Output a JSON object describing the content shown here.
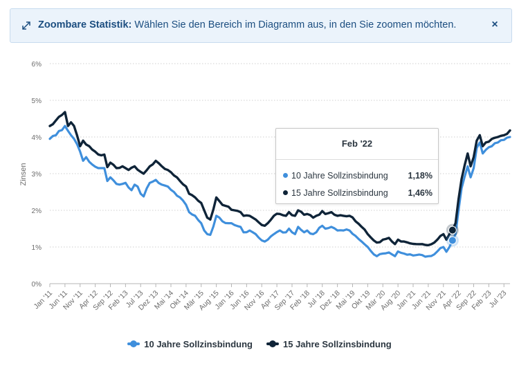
{
  "banner": {
    "title": "Zoombare Statistik:",
    "message": "Wählen Sie den Bereich im Diagramm aus, in den Sie zoomen möchten.",
    "close_label": "×"
  },
  "tooltip": {
    "title": "Feb '22",
    "rows": [
      {
        "label": "10 Jahre Sollzinsbindung",
        "value": "1,18%"
      },
      {
        "label": "15 Jahre Sollzinsbindung",
        "value": "1,46%"
      }
    ]
  },
  "colors": {
    "series1": "#3f8fdc",
    "series2": "#0f2438",
    "grid": "#cfcfcf",
    "banner_text": "#1c4e80"
  },
  "chart_data": {
    "type": "line",
    "ylabel": "Zinsen",
    "ylim": [
      0,
      6
    ],
    "y_ticks": [
      "0%",
      "1%",
      "2%",
      "3%",
      "4%",
      "5%",
      "6%"
    ],
    "x_ticks": [
      "Jan '11",
      "Jun '11",
      "Nov '11",
      "Apr '12",
      "Sep '12",
      "Feb '13",
      "Jul '13",
      "Dez '13",
      "Mai '14",
      "Okt '14",
      "Mär '15",
      "Aug '15",
      "Jan '16",
      "Jun '16",
      "Nov '16",
      "Apr '17",
      "Sep '17",
      "Feb '18",
      "Jul '18",
      "Dez '18",
      "Mai '19",
      "Okt '19",
      "Mär '20",
      "Aug '20",
      "Jan '21",
      "Jun '21",
      "Nov '21",
      "Apr '22",
      "Sep '22",
      "Feb '23",
      "Jul '23"
    ],
    "x_start": "Jan 2011",
    "x_end": "Okt 2023",
    "highlight_index": 133,
    "series": [
      {
        "name": "10 Jahre Sollzinsbindung",
        "keypoints": [
          [
            0,
            3.95
          ],
          [
            2,
            4.05
          ],
          [
            5,
            4.3
          ],
          [
            7,
            4.05
          ],
          [
            8,
            3.95
          ],
          [
            10,
            3.6
          ],
          [
            11,
            3.35
          ],
          [
            12,
            3.45
          ],
          [
            14,
            3.25
          ],
          [
            16,
            3.15
          ],
          [
            18,
            3.15
          ],
          [
            19,
            2.8
          ],
          [
            20,
            2.9
          ],
          [
            22,
            2.72
          ],
          [
            24,
            2.72
          ],
          [
            25,
            2.75
          ],
          [
            27,
            2.55
          ],
          [
            28,
            2.7
          ],
          [
            29,
            2.65
          ],
          [
            30,
            2.45
          ],
          [
            31,
            2.38
          ],
          [
            33,
            2.75
          ],
          [
            35,
            2.83
          ],
          [
            37,
            2.7
          ],
          [
            39,
            2.65
          ],
          [
            41,
            2.5
          ],
          [
            43,
            2.35
          ],
          [
            45,
            2.15
          ],
          [
            46,
            1.95
          ],
          [
            48,
            1.85
          ],
          [
            50,
            1.65
          ],
          [
            51,
            1.45
          ],
          [
            52,
            1.35
          ],
          [
            53,
            1.33
          ],
          [
            55,
            1.85
          ],
          [
            57,
            1.7
          ],
          [
            59,
            1.65
          ],
          [
            61,
            1.6
          ],
          [
            63,
            1.55
          ],
          [
            64,
            1.4
          ],
          [
            66,
            1.45
          ],
          [
            68,
            1.35
          ],
          [
            70,
            1.18
          ],
          [
            71,
            1.15
          ],
          [
            72,
            1.2
          ],
          [
            74,
            1.35
          ],
          [
            76,
            1.45
          ],
          [
            78,
            1.4
          ],
          [
            79,
            1.5
          ],
          [
            81,
            1.35
          ],
          [
            82,
            1.55
          ],
          [
            84,
            1.4
          ],
          [
            85,
            1.45
          ],
          [
            87,
            1.35
          ],
          [
            88,
            1.4
          ],
          [
            90,
            1.58
          ],
          [
            91,
            1.5
          ],
          [
            93,
            1.55
          ],
          [
            95,
            1.45
          ],
          [
            97,
            1.45
          ],
          [
            99,
            1.45
          ],
          [
            101,
            1.3
          ],
          [
            103,
            1.15
          ],
          [
            105,
            1.0
          ],
          [
            107,
            0.8
          ],
          [
            108,
            0.75
          ],
          [
            110,
            0.82
          ],
          [
            112,
            0.85
          ],
          [
            113,
            0.8
          ],
          [
            114,
            0.75
          ],
          [
            115,
            0.88
          ],
          [
            117,
            0.82
          ],
          [
            119,
            0.8
          ],
          [
            121,
            0.78
          ],
          [
            123,
            0.78
          ],
          [
            125,
            0.75
          ],
          [
            127,
            0.8
          ],
          [
            128,
            0.88
          ],
          [
            129,
            0.97
          ],
          [
            130,
            1.0
          ],
          [
            131,
            0.87
          ],
          [
            132,
            1.0
          ],
          [
            133,
            1.18
          ],
          [
            134,
            1.35
          ],
          [
            135,
            2.0
          ],
          [
            136,
            2.6
          ],
          [
            138,
            3.2
          ],
          [
            139,
            2.9
          ],
          [
            140,
            3.15
          ],
          [
            141,
            3.7
          ],
          [
            142,
            3.85
          ],
          [
            143,
            3.55
          ],
          [
            144,
            3.65
          ],
          [
            146,
            3.75
          ],
          [
            148,
            3.85
          ],
          [
            150,
            3.92
          ],
          [
            152,
            4.0
          ]
        ]
      },
      {
        "name": "15 Jahre Sollzinsbindung",
        "keypoints": [
          [
            0,
            4.3
          ],
          [
            2,
            4.45
          ],
          [
            4,
            4.6
          ],
          [
            5,
            4.68
          ],
          [
            6,
            4.3
          ],
          [
            7,
            4.4
          ],
          [
            8,
            4.3
          ],
          [
            10,
            3.75
          ],
          [
            11,
            3.9
          ],
          [
            13,
            3.75
          ],
          [
            15,
            3.6
          ],
          [
            17,
            3.5
          ],
          [
            18,
            3.52
          ],
          [
            19,
            3.18
          ],
          [
            20,
            3.3
          ],
          [
            22,
            3.15
          ],
          [
            24,
            3.2
          ],
          [
            26,
            3.1
          ],
          [
            28,
            3.2
          ],
          [
            30,
            3.05
          ],
          [
            31,
            3.0
          ],
          [
            33,
            3.2
          ],
          [
            35,
            3.35
          ],
          [
            37,
            3.2
          ],
          [
            39,
            3.1
          ],
          [
            41,
            2.95
          ],
          [
            43,
            2.8
          ],
          [
            45,
            2.65
          ],
          [
            46,
            2.45
          ],
          [
            48,
            2.35
          ],
          [
            50,
            2.2
          ],
          [
            51,
            2.0
          ],
          [
            52,
            1.8
          ],
          [
            53,
            1.75
          ],
          [
            55,
            2.35
          ],
          [
            57,
            2.15
          ],
          [
            59,
            2.1
          ],
          [
            61,
            2.0
          ],
          [
            63,
            1.95
          ],
          [
            64,
            1.85
          ],
          [
            66,
            1.85
          ],
          [
            68,
            1.75
          ],
          [
            70,
            1.6
          ],
          [
            71,
            1.58
          ],
          [
            72,
            1.65
          ],
          [
            74,
            1.85
          ],
          [
            76,
            1.9
          ],
          [
            78,
            1.85
          ],
          [
            79,
            1.95
          ],
          [
            81,
            1.85
          ],
          [
            82,
            2.0
          ],
          [
            84,
            1.88
          ],
          [
            85,
            1.9
          ],
          [
            87,
            1.8
          ],
          [
            88,
            1.85
          ],
          [
            90,
            1.98
          ],
          [
            91,
            1.9
          ],
          [
            93,
            1.95
          ],
          [
            95,
            1.85
          ],
          [
            97,
            1.85
          ],
          [
            99,
            1.85
          ],
          [
            101,
            1.7
          ],
          [
            103,
            1.55
          ],
          [
            105,
            1.35
          ],
          [
            107,
            1.18
          ],
          [
            108,
            1.12
          ],
          [
            110,
            1.2
          ],
          [
            112,
            1.25
          ],
          [
            113,
            1.15
          ],
          [
            114,
            1.08
          ],
          [
            115,
            1.2
          ],
          [
            117,
            1.15
          ],
          [
            119,
            1.1
          ],
          [
            121,
            1.08
          ],
          [
            123,
            1.08
          ],
          [
            125,
            1.05
          ],
          [
            127,
            1.12
          ],
          [
            128,
            1.2
          ],
          [
            129,
            1.3
          ],
          [
            130,
            1.35
          ],
          [
            131,
            1.2
          ],
          [
            132,
            1.35
          ],
          [
            133,
            1.46
          ],
          [
            134,
            1.65
          ],
          [
            135,
            2.3
          ],
          [
            136,
            2.85
          ],
          [
            138,
            3.55
          ],
          [
            139,
            3.2
          ],
          [
            140,
            3.45
          ],
          [
            141,
            3.9
          ],
          [
            142,
            4.05
          ],
          [
            143,
            3.75
          ],
          [
            144,
            3.85
          ],
          [
            146,
            3.95
          ],
          [
            148,
            4.0
          ],
          [
            150,
            4.05
          ],
          [
            152,
            4.18
          ]
        ]
      }
    ]
  }
}
